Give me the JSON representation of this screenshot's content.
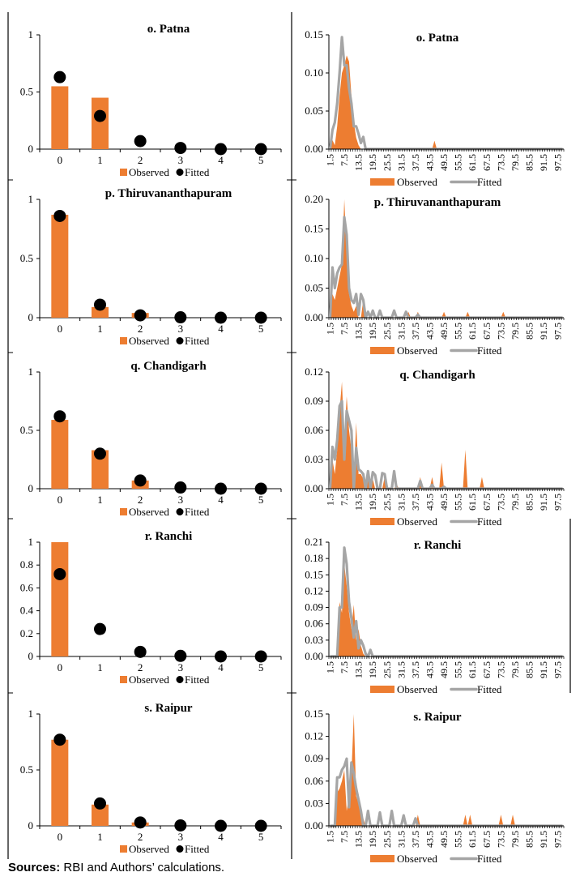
{
  "figure": {
    "sources_label": "Sources:",
    "sources_text": " RBI and Authors’ calculations.",
    "colors": {
      "observed": "#ED7D31",
      "fitted_dot": "#000000",
      "fitted_line": "#A5A5A5",
      "axis": "#000000"
    },
    "legend": {
      "observed": "Observed",
      "fitted": "Fitted"
    }
  },
  "chart_data": [
    {
      "panel": "left",
      "row": 0,
      "type": "bar",
      "title": "o. Patna",
      "categories": [
        "0",
        "1",
        "2",
        "3",
        "4",
        "5"
      ],
      "series": [
        {
          "name": "Observed",
          "type": "bar",
          "values": [
            0.55,
            0.45,
            0,
            0,
            0,
            0
          ]
        },
        {
          "name": "Fitted",
          "type": "scatter",
          "values": [
            0.63,
            0.29,
            0.07,
            0.01,
            0.0,
            0.0
          ]
        }
      ],
      "ylim": [
        0,
        1
      ],
      "yticks": [
        "0",
        "0.5",
        "1"
      ],
      "ytick_values": [
        0,
        0.5,
        1
      ],
      "legend": "bottom"
    },
    {
      "panel": "right",
      "row": 0,
      "type": "area",
      "title": "o. Patna",
      "x_start": 1.5,
      "x_step": 1,
      "x_count": 99,
      "xtick_labels": [
        "1.5",
        "7.5",
        "13.5",
        "19.5",
        "25.5",
        "31.5",
        "37.5",
        "43.5",
        "49.5",
        "55.5",
        "61.5",
        "67.5",
        "73.5",
        "79.5",
        "85.5",
        "91.5",
        "97.5"
      ],
      "ylim": [
        0,
        0.15
      ],
      "yticks": [
        "0.00",
        "0.05",
        "0.10",
        "0.15"
      ],
      "ytick_values": [
        0,
        0.05,
        0.1,
        0.15
      ],
      "observed_nonzero": {
        "2.5": 0.012,
        "3.5": 0.005,
        "4.5": 0.03,
        "5.5": 0.07,
        "6.5": 0.1,
        "7.5": 0.11,
        "8.5": 0.123,
        "9.5": 0.115,
        "10.5": 0.07,
        "11.5": 0.035,
        "12.5": 0.015,
        "13.5": 0.005,
        "45.5": 0.011
      },
      "fitted_nonzero": {
        "2.5": 0.025,
        "3.5": 0.035,
        "4.5": 0.06,
        "5.5": 0.1,
        "6.5": 0.147,
        "7.5": 0.11,
        "8.5": 0.11,
        "9.5": 0.08,
        "10.5": 0.06,
        "11.5": 0.03,
        "12.5": 0.03,
        "13.5": 0.02,
        "14.5": 0.008,
        "15.5": 0.016
      },
      "legend": "bottom"
    },
    {
      "panel": "left",
      "row": 1,
      "type": "bar",
      "title": "p. Thiruvananthapuram",
      "categories": [
        "0",
        "1",
        "2",
        "3",
        "4",
        "5"
      ],
      "series": [
        {
          "name": "Observed",
          "type": "bar",
          "values": [
            0.87,
            0.09,
            0.04,
            0,
            0,
            0
          ]
        },
        {
          "name": "Fitted",
          "type": "scatter",
          "values": [
            0.86,
            0.11,
            0.02,
            0.003,
            0.0,
            0.0
          ]
        }
      ],
      "ylim": [
        0,
        1
      ],
      "yticks": [
        "0",
        "0.5",
        "1"
      ],
      "ytick_values": [
        0,
        0.5,
        1
      ],
      "legend": "bottom"
    },
    {
      "panel": "right",
      "row": 1,
      "type": "area",
      "title": "p. Thiruvananthapuram",
      "x_start": 1.5,
      "x_step": 1,
      "x_count": 99,
      "xtick_labels": [
        "1.5",
        "7.5",
        "13.5",
        "19.5",
        "25.5",
        "31.5",
        "37.5",
        "43.5",
        "49.5",
        "55.5",
        "61.5",
        "67.5",
        "73.5",
        "79.5",
        "85.5",
        "91.5",
        "97.5"
      ],
      "ylim": [
        0,
        0.2
      ],
      "yticks": [
        "0.00",
        "0.05",
        "0.10",
        "0.15",
        "0.20"
      ],
      "ytick_values": [
        0,
        0.05,
        0.1,
        0.15,
        0.2
      ],
      "observed_nonzero": {
        "2.5": 0.04,
        "3.5": 0.03,
        "4.5": 0.05,
        "5.5": 0.07,
        "6.5": 0.09,
        "7.5": 0.2,
        "8.5": 0.11,
        "9.5": 0.04,
        "10.5": 0.02,
        "11.5": 0.01,
        "12.5": 0.02,
        "15.5": 0.03,
        "34.5": 0.01,
        "38.5": 0.01,
        "49.5": 0.01,
        "59.5": 0.01,
        "74.5": 0.01
      },
      "fitted_nonzero": {
        "2.5": 0.085,
        "3.5": 0.05,
        "4.5": 0.075,
        "5.5": 0.085,
        "6.5": 0.09,
        "7.5": 0.17,
        "8.5": 0.14,
        "9.5": 0.05,
        "10.5": 0.03,
        "11.5": 0.025,
        "12.5": 0.04,
        "13.5": 0.005,
        "14.5": 0.04,
        "15.5": 0.03,
        "17.5": 0.01,
        "19.5": 0.012,
        "22.5": 0.012,
        "28.5": 0.012,
        "33.5": 0.01,
        "38.5": 0.005
      },
      "legend": "bottom"
    },
    {
      "panel": "left",
      "row": 2,
      "type": "bar",
      "title": "q. Chandigarh",
      "categories": [
        "0",
        "1",
        "2",
        "3",
        "4",
        "5"
      ],
      "series": [
        {
          "name": "Observed",
          "type": "bar",
          "values": [
            0.59,
            0.33,
            0.07,
            0,
            0,
            0
          ]
        },
        {
          "name": "Fitted",
          "type": "scatter",
          "values": [
            0.62,
            0.3,
            0.07,
            0.01,
            0.0,
            0.0
          ]
        }
      ],
      "ylim": [
        0,
        1
      ],
      "yticks": [
        "0",
        "0.5",
        "1"
      ],
      "ytick_values": [
        0,
        0.5,
        1
      ],
      "legend": "bottom"
    },
    {
      "panel": "right",
      "row": 2,
      "type": "area",
      "title": "q. Chandigarh",
      "x_start": 1.5,
      "x_step": 1,
      "x_count": 99,
      "xtick_labels": [
        "1.5",
        "7.5",
        "13.5",
        "19.5",
        "25.5",
        "31.5",
        "37.5",
        "43.5",
        "49.5",
        "55.5",
        "61.5",
        "67.5",
        "73.5",
        "79.5",
        "85.5",
        "91.5",
        "97.5"
      ],
      "ylim": [
        0,
        0.12
      ],
      "yticks": [
        "0.00",
        "0.03",
        "0.06",
        "0.09",
        "0.12"
      ],
      "ytick_values": [
        0,
        0.03,
        0.06,
        0.09,
        0.12
      ],
      "observed_nonzero": {
        "2.5": 0.03,
        "3.5": 0.015,
        "4.5": 0.04,
        "5.5": 0.08,
        "6.5": 0.11,
        "7.5": 0.05,
        "8.5": 0.095,
        "9.5": 0.06,
        "10.5": 0.04,
        "11.5": 0.01,
        "12.5": 0.068,
        "13.5": 0.015,
        "14.5": 0.015,
        "15.5": 0.01,
        "17.5": 0.01,
        "19.5": 0.01,
        "24.5": 0.012,
        "29.5": 0.005,
        "39.5": 0.012,
        "44.5": 0.012,
        "48.5": 0.027,
        "58.5": 0.04,
        "65.5": 0.012
      },
      "fitted_nonzero": {
        "2.5": 0.043,
        "3.5": 0.03,
        "4.5": 0.05,
        "5.5": 0.085,
        "6.5": 0.09,
        "7.5": 0.03,
        "8.5": 0.08,
        "9.5": 0.07,
        "10.5": 0.06,
        "11.5": 0.0,
        "12.5": 0.042,
        "13.5": 0.02,
        "14.5": 0.018,
        "15.5": 0.015,
        "16.5": 0.0,
        "17.5": 0.018,
        "18.5": 0.0,
        "19.5": 0.017,
        "20.5": 0.014,
        "23.5": 0.016,
        "24.5": 0.015,
        "28.5": 0.018,
        "39.5": 0.008,
        "44.5": 0.004,
        "49.5": 0.002
      },
      "legend": "bottom"
    },
    {
      "panel": "left",
      "row": 3,
      "type": "bar",
      "title": "r. Ranchi",
      "categories": [
        "0",
        "1",
        "2",
        "3",
        "4",
        "5"
      ],
      "series": [
        {
          "name": "Observed",
          "type": "bar",
          "values": [
            1.0,
            0,
            0,
            0,
            0,
            0
          ]
        },
        {
          "name": "Fitted",
          "type": "scatter",
          "values": [
            0.72,
            0.24,
            0.04,
            0.005,
            0.0,
            0.0
          ]
        }
      ],
      "ylim": [
        0,
        1
      ],
      "yticks": [
        "0",
        "0.2",
        "0.4",
        "0.6",
        "0.8",
        "1"
      ],
      "ytick_values": [
        0,
        0.2,
        0.4,
        0.6,
        0.8,
        1
      ],
      "legend": "bottom"
    },
    {
      "panel": "right",
      "row": 3,
      "type": "area",
      "title": "r. Ranchi",
      "x_start": 1.5,
      "x_step": 1,
      "x_count": 99,
      "xtick_labels": [
        "1.5",
        "7.5",
        "13.5",
        "19.5",
        "25.5",
        "31.5",
        "37.5",
        "43.5",
        "49.5",
        "55.5",
        "61.5",
        "67.5",
        "73.5",
        "79.5",
        "85.5",
        "91.5",
        "97.5"
      ],
      "ylim": [
        0,
        0.21
      ],
      "yticks": [
        "0.00",
        "0.03",
        "0.06",
        "0.09",
        "0.12",
        "0.15",
        "0.18",
        "0.21"
      ],
      "ytick_values": [
        0,
        0.03,
        0.06,
        0.09,
        0.12,
        0.15,
        0.18,
        0.21
      ],
      "observed_nonzero": {
        "5.5": 0.1,
        "6.5": 0.08,
        "7.5": 0.17,
        "8.5": 0.13,
        "9.5": 0.08,
        "10.5": 0.05,
        "11.5": 0.095,
        "12.5": 0.03,
        "13.5": 0.05,
        "14.5": 0.02,
        "15.5": 0.005
      },
      "fitted_nonzero": {
        "5.5": 0.09,
        "6.5": 0.09,
        "7.5": 0.2,
        "8.5": 0.17,
        "9.5": 0.1,
        "10.5": 0.07,
        "11.5": 0.035,
        "12.5": 0.065,
        "13.5": 0.015,
        "14.5": 0.03,
        "15.5": 0.02,
        "16.5": 0.005,
        "18.5": 0.012
      },
      "legend": "bottom"
    },
    {
      "panel": "left",
      "row": 4,
      "type": "bar",
      "title": "s. Raipur",
      "categories": [
        "0",
        "1",
        "2",
        "3",
        "4",
        "5"
      ],
      "series": [
        {
          "name": "Observed",
          "type": "bar",
          "values": [
            0.77,
            0.19,
            0.03,
            0,
            0,
            0
          ]
        },
        {
          "name": "Fitted",
          "type": "scatter",
          "values": [
            0.77,
            0.2,
            0.03,
            0.004,
            0.0,
            0.0
          ]
        }
      ],
      "ylim": [
        0,
        1
      ],
      "yticks": [
        "0",
        "0.5",
        "1"
      ],
      "ytick_values": [
        0,
        0.5,
        1
      ],
      "legend": "bottom"
    },
    {
      "panel": "right",
      "row": 4,
      "type": "area",
      "title": "s. Raipur",
      "x_start": 1.5,
      "x_step": 1,
      "x_count": 99,
      "xtick_labels": [
        "1.5",
        "7.5",
        "13.5",
        "19.5",
        "25.5",
        "31.5",
        "37.5",
        "43.5",
        "49.5",
        "55.5",
        "61.5",
        "67.5",
        "73.5",
        "79.5",
        "85.5",
        "91.5",
        "97.5"
      ],
      "ylim": [
        0,
        0.15
      ],
      "yticks": [
        "0.00",
        "0.03",
        "0.06",
        "0.09",
        "0.12",
        "0.15"
      ],
      "ytick_values": [
        0,
        0.03,
        0.06,
        0.09,
        0.12,
        0.15
      ],
      "observed_nonzero": {
        "4.5": 0.045,
        "5.5": 0.05,
        "6.5": 0.06,
        "7.5": 0.075,
        "8.5": 0.02,
        "9.5": 0.04,
        "10.5": 0.07,
        "11.5": 0.15,
        "12.5": 0.04,
        "13.5": 0.03,
        "14.5": 0.02,
        "15.5": 0.01,
        "38.5": 0.015,
        "58.5": 0.015,
        "60.5": 0.015,
        "73.5": 0.015,
        "78.5": 0.015
      },
      "fitted_nonzero": {
        "4.5": 0.065,
        "5.5": 0.065,
        "6.5": 0.075,
        "7.5": 0.08,
        "8.5": 0.09,
        "9.5": 0.025,
        "10.5": 0.085,
        "11.5": 0.07,
        "12.5": 0.05,
        "13.5": 0.035,
        "14.5": 0.02,
        "17.5": 0.02,
        "22.5": 0.018,
        "27.5": 0.02,
        "32.5": 0.014,
        "37.5": 0.01
      },
      "legend": "bottom"
    }
  ]
}
